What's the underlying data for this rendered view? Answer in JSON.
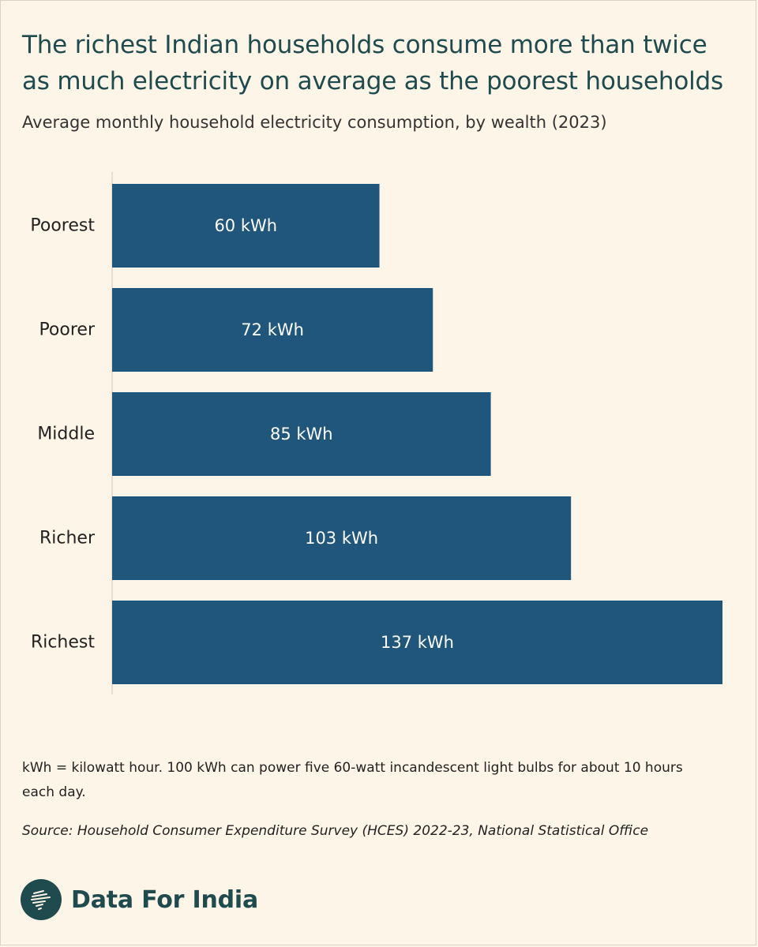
{
  "header": {
    "title": "The richest Indian households consume more than twice as much electricity on average as the poorest households",
    "subtitle": "Average monthly household electricity consumption, by wealth (2023)"
  },
  "chart_data": {
    "type": "bar",
    "orientation": "horizontal",
    "categories": [
      "Poorest",
      "Poorer",
      "Middle",
      "Richer",
      "Richest"
    ],
    "values": [
      60,
      72,
      85,
      103,
      137
    ],
    "value_labels": [
      "60 kWh",
      "72 kWh",
      "85 kWh",
      "103 kWh",
      "137 kWh"
    ],
    "xlim": [
      0,
      137
    ],
    "grid": false,
    "bar_color": "#20567c"
  },
  "footer": {
    "note": "kWh = kilowatt hour. 100 kWh can power five 60-watt incandescent light bulbs for about 10 hours each day.",
    "source": "Source: Household Consumer Expenditure Survey (HCES) 2022-23, National Statistical Office",
    "brand": "Data For India",
    "brand_icon": "india-map-icon",
    "brand_color": "#1f4a4e"
  }
}
